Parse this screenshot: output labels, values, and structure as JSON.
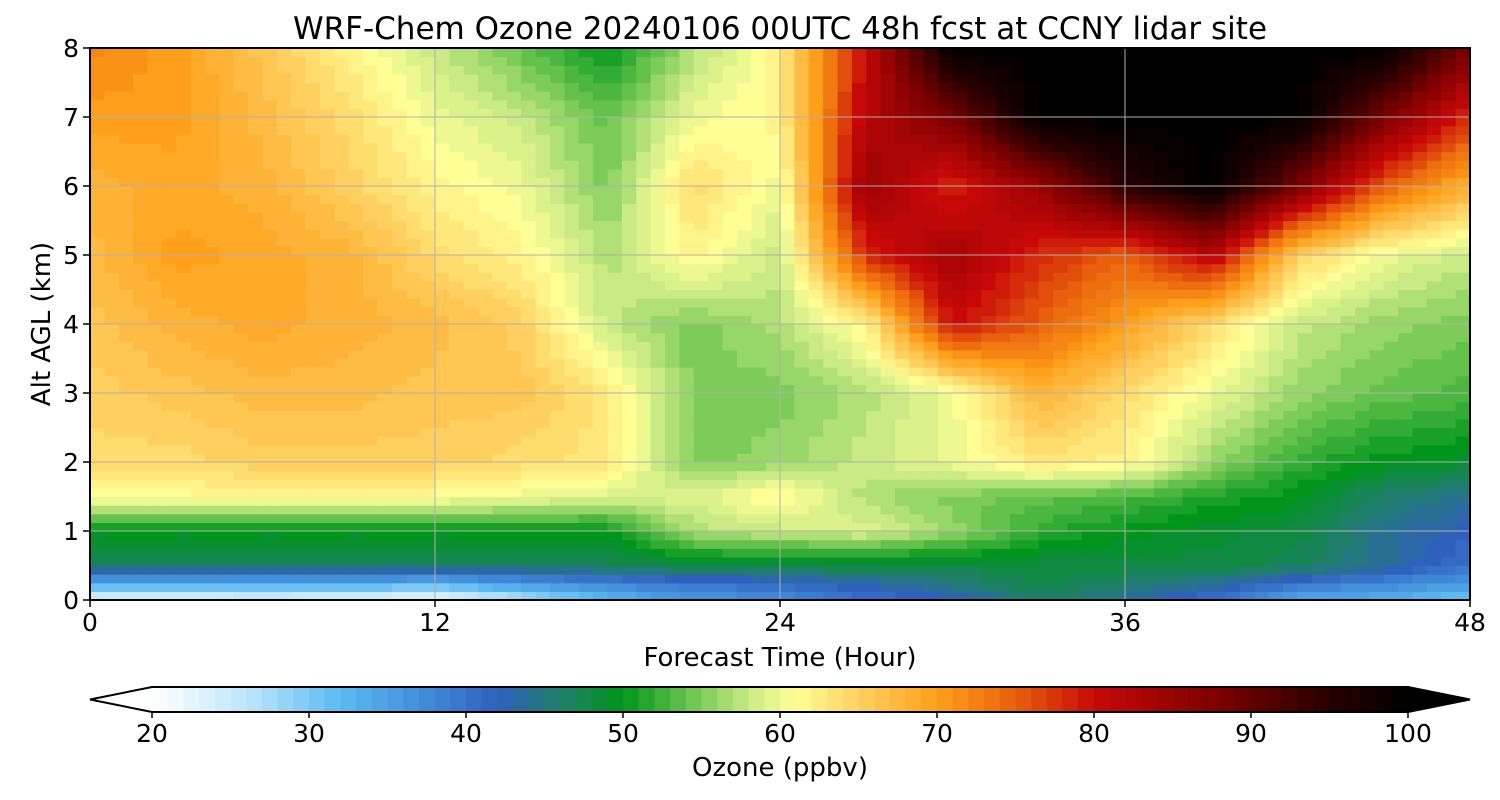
{
  "chart_data": {
    "type": "heatmap",
    "title": "WRF-Chem Ozone  20240106 00UTC 48h fcst at CCNY lidar site",
    "xlabel": "Forecast Time (Hour)",
    "ylabel": "Alt AGL (km)",
    "xlim": [
      0,
      48
    ],
    "ylim": [
      0,
      8
    ],
    "x_ticks": [
      "0",
      "12",
      "24",
      "36",
      "48"
    ],
    "y_ticks": [
      "0",
      "1",
      "2",
      "3",
      "4",
      "5",
      "6",
      "7",
      "8"
    ],
    "grid": true,
    "x_hours": [
      0,
      3,
      6,
      9,
      12,
      15,
      18,
      21,
      24,
      27,
      30,
      33,
      36,
      39,
      42,
      45,
      48
    ],
    "z_km": [
      0,
      0.25,
      0.5,
      1,
      1.5,
      2,
      3,
      4,
      5,
      6,
      7,
      8
    ],
    "ozone_ppbv": [
      [
        22,
        22,
        23,
        22,
        21,
        26,
        32,
        36,
        37,
        40,
        42,
        46,
        44,
        40,
        34,
        33,
        30
      ],
      [
        34,
        34,
        34,
        34,
        33,
        36,
        38,
        40,
        41,
        43,
        45,
        48,
        46,
        44,
        40,
        38,
        36
      ],
      [
        46,
        46,
        46,
        46,
        46,
        46,
        47,
        48,
        48,
        48,
        48,
        48,
        48,
        48,
        47,
        44,
        40
      ],
      [
        50,
        50,
        50,
        50,
        50,
        50,
        50,
        57,
        58,
        59,
        56,
        52,
        50,
        49,
        48,
        44,
        42
      ],
      [
        61,
        61,
        62,
        61,
        61,
        60,
        59,
        59,
        62,
        57,
        55,
        54,
        53,
        51,
        50,
        46,
        44
      ],
      [
        64,
        64,
        65,
        65,
        65,
        64,
        63,
        55,
        56,
        58,
        60,
        63,
        62,
        56,
        52,
        50,
        49
      ],
      [
        65,
        66,
        67,
        67,
        66,
        66,
        63,
        55,
        55,
        57,
        60,
        68,
        64,
        60,
        56,
        54,
        53
      ],
      [
        66,
        68,
        69,
        68,
        67,
        65,
        58,
        55,
        57,
        62,
        80,
        75,
        70,
        64,
        58,
        56,
        55
      ],
      [
        67,
        70,
        69,
        68,
        64,
        62,
        57,
        62,
        58,
        78,
        84,
        78,
        75,
        82,
        65,
        60,
        58
      ],
      [
        68,
        69,
        68,
        65,
        62,
        60,
        55,
        64,
        60,
        85,
        78,
        85,
        95,
        100,
        88,
        75,
        68
      ],
      [
        70,
        70,
        67,
        64,
        60,
        58,
        54,
        60,
        62,
        82,
        88,
        100,
        100,
        100,
        100,
        88,
        78
      ],
      [
        72,
        70,
        66,
        62,
        58,
        54,
        50,
        57,
        62,
        80,
        100,
        100,
        100,
        100,
        100,
        100,
        88
      ]
    ],
    "colorbar": {
      "label": "Ozone  (ppbv)",
      "min": 20,
      "max": 100,
      "ticks": [
        "20",
        "30",
        "40",
        "50",
        "60",
        "70",
        "80",
        "90",
        "100"
      ],
      "extend": "both",
      "stops": [
        {
          "value": 20,
          "color": "#ffffff"
        },
        {
          "value": 26,
          "color": "#bfe6fb"
        },
        {
          "value": 32,
          "color": "#5bbaf2"
        },
        {
          "value": 38,
          "color": "#3f86d6"
        },
        {
          "value": 42,
          "color": "#3060bd"
        },
        {
          "value": 46,
          "color": "#1f7e6a"
        },
        {
          "value": 50,
          "color": "#00951b"
        },
        {
          "value": 54,
          "color": "#64c24c"
        },
        {
          "value": 58,
          "color": "#c9ea84"
        },
        {
          "value": 61,
          "color": "#ffff96"
        },
        {
          "value": 65,
          "color": "#ffd060"
        },
        {
          "value": 70,
          "color": "#ff9f1a"
        },
        {
          "value": 75,
          "color": "#e8600c"
        },
        {
          "value": 80,
          "color": "#c80808"
        },
        {
          "value": 88,
          "color": "#7a0000"
        },
        {
          "value": 95,
          "color": "#280000"
        },
        {
          "value": 100,
          "color": "#000000"
        }
      ]
    }
  }
}
